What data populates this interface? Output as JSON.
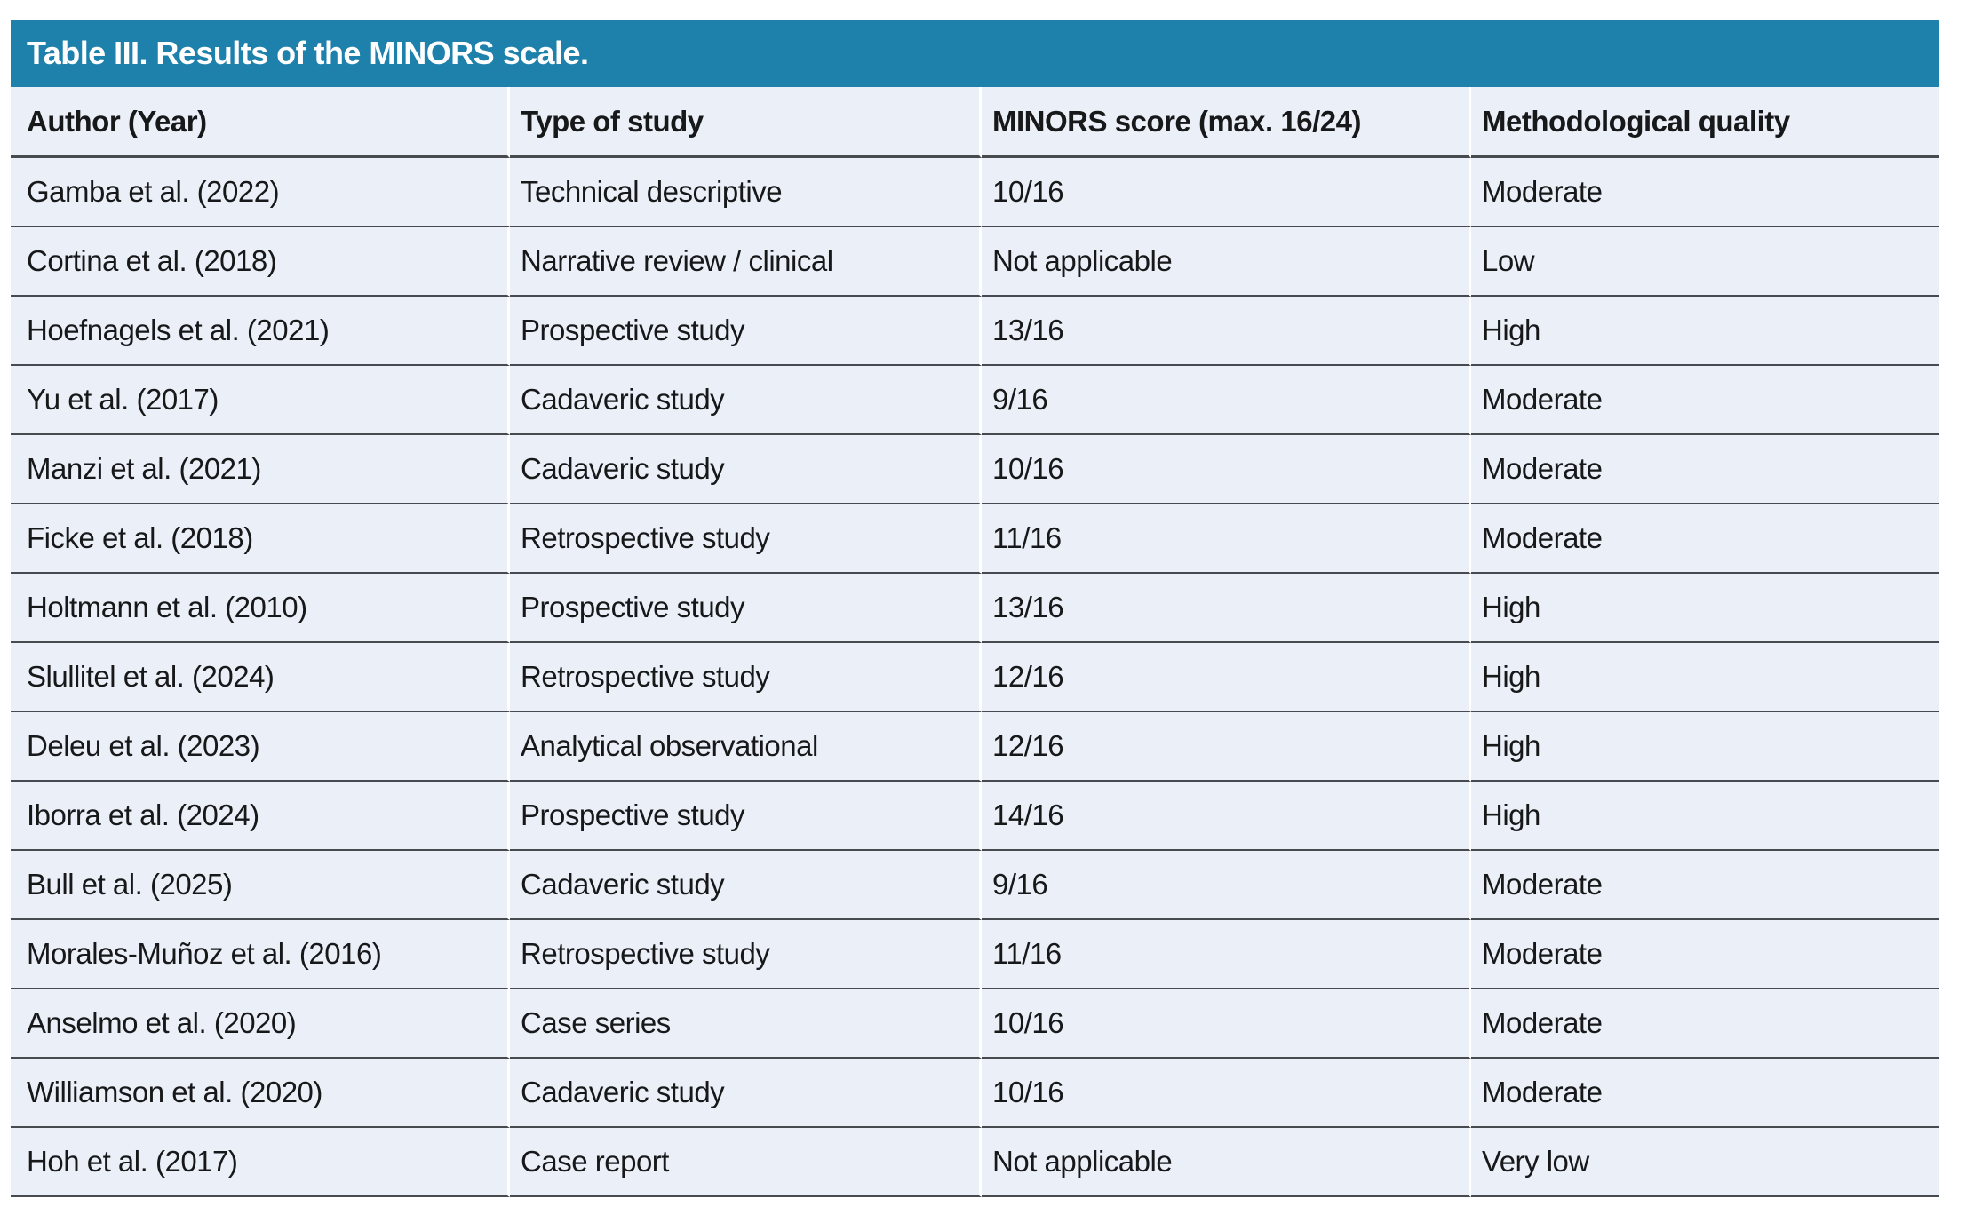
{
  "table": {
    "title": "Table III. Results of the MINORS scale.",
    "columns": [
      "Author (Year)",
      "Type of study",
      "MINORS score (max. 16/24)",
      "Methodological quality"
    ],
    "rows": [
      [
        "Gamba et al. (2022)",
        "Technical descriptive",
        "10/16",
        "Moderate"
      ],
      [
        "Cortina et al. (2018)",
        "Narrative review / clinical",
        "Not applicable",
        "Low"
      ],
      [
        "Hoefnagels et al. (2021)",
        "Prospective study",
        "13/16",
        "High"
      ],
      [
        "Yu et al. (2017)",
        "Cadaveric study",
        "9/16",
        "Moderate"
      ],
      [
        "Manzi et al. (2021)",
        "Cadaveric study",
        "10/16",
        "Moderate"
      ],
      [
        "Ficke et al. (2018)",
        "Retrospective study",
        "11/16",
        "Moderate"
      ],
      [
        "Holtmann et al. (2010)",
        "Prospective study",
        "13/16",
        "High"
      ],
      [
        "Slullitel et al. (2024)",
        "Retrospective study",
        "12/16",
        "High"
      ],
      [
        "Deleu et al. (2023)",
        "Analytical observational",
        "12/16",
        "High"
      ],
      [
        "Iborra et al. (2024)",
        "Prospective study",
        "14/16",
        "High"
      ],
      [
        "Bull et al. (2025)",
        "Cadaveric study",
        "9/16",
        "Moderate"
      ],
      [
        "Morales-Muñoz et al. (2016)",
        "Retrospective study",
        "11/16",
        "Moderate"
      ],
      [
        "Anselmo et al. (2020)",
        "Case series",
        "10/16",
        "Moderate"
      ],
      [
        "Williamson et al. (2020)",
        "Cadaveric study",
        "10/16",
        "Moderate"
      ],
      [
        "Hoh et al. (2017)",
        "Case report",
        "Not applicable",
        "Very low"
      ]
    ]
  },
  "colors": {
    "header_bar": "#1d81ac",
    "header_text": "#ffffff",
    "row_bg": "#ebeff7",
    "divider": "#474b50",
    "text": "#17181a"
  }
}
